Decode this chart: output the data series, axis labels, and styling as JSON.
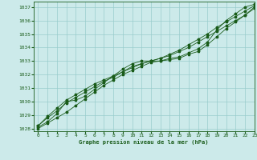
{
  "xlabel": "Graphe pression niveau de la mer (hPa)",
  "bg_color": "#cceaea",
  "grid_color": "#99cccc",
  "line_color": "#1a5c1a",
  "xlim": [
    -0.5,
    23
  ],
  "ylim": [
    1027.8,
    1037.4
  ],
  "yticks": [
    1028,
    1029,
    1030,
    1031,
    1032,
    1033,
    1034,
    1035,
    1036,
    1037
  ],
  "xticks": [
    0,
    1,
    2,
    3,
    4,
    5,
    6,
    7,
    8,
    9,
    10,
    11,
    12,
    13,
    14,
    15,
    16,
    17,
    18,
    19,
    20,
    21,
    22,
    23
  ],
  "series": [
    [
      1028.1,
      1028.5,
      1029.1,
      1030.0,
      1030.1,
      1030.4,
      1030.9,
      1031.4,
      1031.9,
      1032.4,
      1032.8,
      1033.0,
      1033.0,
      1033.0,
      1033.2,
      1033.3,
      1033.6,
      1033.9,
      1034.4,
      1035.3,
      1036.0,
      1036.5,
      1037.0,
      1037.2
    ],
    [
      1028.2,
      1028.9,
      1029.5,
      1030.1,
      1030.5,
      1030.9,
      1031.3,
      1031.6,
      1031.9,
      1032.2,
      1032.6,
      1032.8,
      1033.0,
      1033.2,
      1033.5,
      1033.8,
      1034.2,
      1034.6,
      1035.0,
      1035.5,
      1035.9,
      1036.3,
      1036.7,
      1037.1
    ],
    [
      1028.2,
      1028.8,
      1029.3,
      1029.9,
      1030.3,
      1030.7,
      1031.1,
      1031.5,
      1031.8,
      1032.2,
      1032.5,
      1032.8,
      1033.0,
      1033.2,
      1033.4,
      1033.7,
      1034.0,
      1034.4,
      1034.8,
      1035.2,
      1035.6,
      1036.0,
      1036.4,
      1036.9
    ],
    [
      1028.0,
      1028.4,
      1028.8,
      1029.2,
      1029.7,
      1030.2,
      1030.7,
      1031.2,
      1031.6,
      1032.0,
      1032.3,
      1032.6,
      1032.9,
      1033.0,
      1033.1,
      1033.2,
      1033.5,
      1033.7,
      1034.2,
      1034.8,
      1035.4,
      1035.9,
      1036.4,
      1037.0
    ]
  ]
}
